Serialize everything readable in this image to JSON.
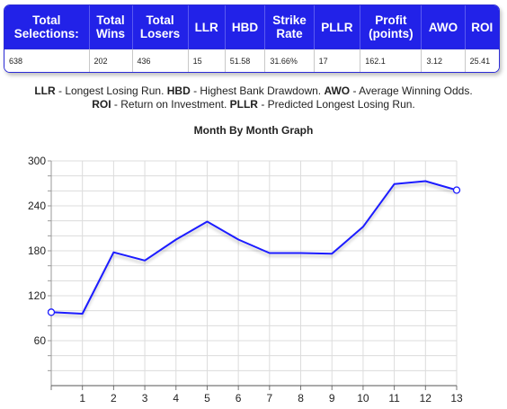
{
  "table": {
    "headers": [
      [
        "Total",
        "Selections:"
      ],
      [
        "Total",
        "Wins"
      ],
      [
        "Total",
        "Losers"
      ],
      [
        "LLR"
      ],
      [
        "HBD"
      ],
      [
        "Strike",
        "Rate"
      ],
      [
        "PLLR"
      ],
      [
        "Profit",
        "(points)"
      ],
      [
        "AWO"
      ],
      [
        "ROI"
      ]
    ],
    "row": [
      "638",
      "202",
      "436",
      "15",
      "51.58",
      "31.66%",
      "17",
      "162.1",
      "3.12",
      "25.41"
    ]
  },
  "legend": {
    "line1": [
      {
        "abbr": "LLR",
        "text": " - Longest Losing Run. "
      },
      {
        "abbr": "HBD",
        "text": " - Highest Bank Drawdown. "
      },
      {
        "abbr": "AWO",
        "text": " - Average Winning Odds."
      }
    ],
    "line2": [
      {
        "abbr": "ROI",
        "text": " - Return on Investment. "
      },
      {
        "abbr": "PLLR",
        "text": " - Predicted Longest Losing Run."
      }
    ]
  },
  "chart_data": {
    "type": "line",
    "title": "Month By Month Graph",
    "x": [
      0,
      1,
      2,
      3,
      4,
      5,
      6,
      7,
      8,
      9,
      10,
      11,
      12,
      13
    ],
    "x_tick_labels": [
      "1",
      "2",
      "3",
      "4",
      "5",
      "6",
      "7",
      "8",
      "9",
      "10",
      "11",
      "12",
      "13"
    ],
    "values": [
      98,
      96,
      178,
      167,
      195,
      219,
      195,
      177,
      177,
      176,
      212,
      269,
      273,
      261
    ],
    "ylim": [
      0,
      300
    ],
    "y_tick_labels": [
      "60",
      "120",
      "180",
      "240",
      "300"
    ],
    "grid": true,
    "line_color": "#1a1aff",
    "marker_points": [
      0,
      13
    ]
  }
}
